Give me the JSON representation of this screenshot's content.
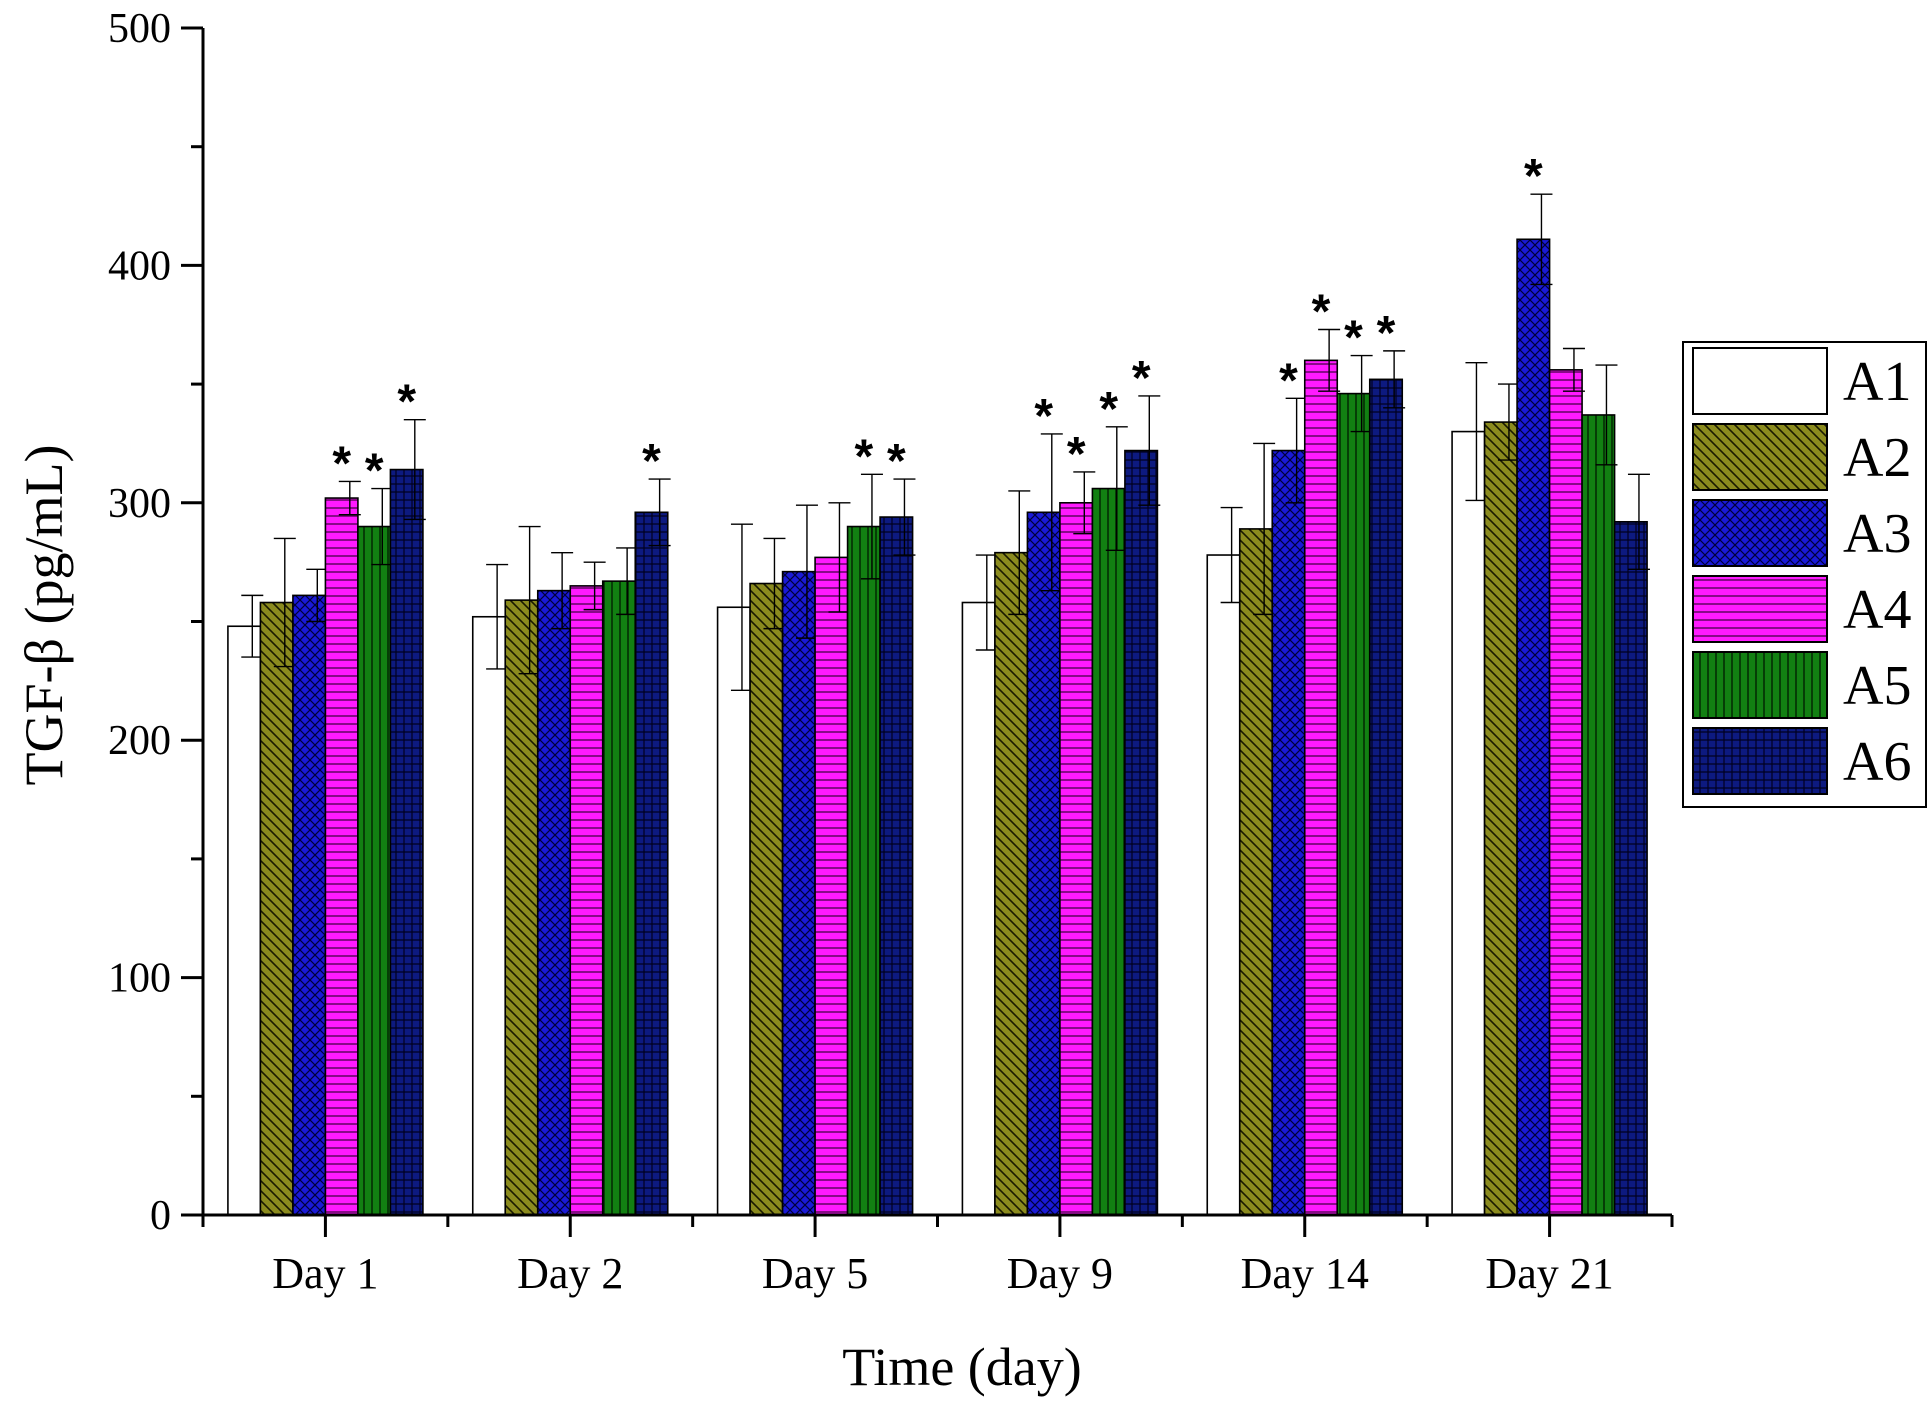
{
  "chart_data": {
    "type": "bar",
    "title": "",
    "xlabel": "Time (day)",
    "ylabel": "TGF-β (pg/mL)",
    "ylim": [
      0,
      500
    ],
    "yticks": [
      "0",
      "100",
      "200",
      "300",
      "400",
      "500"
    ],
    "categories": [
      "Day 1",
      "Day 2",
      "Day 5",
      "Day 9",
      "Day 14",
      "Day 21"
    ],
    "legend_position": "right",
    "significance_marker": "*",
    "series": [
      {
        "name": "A1",
        "color": "#ffffff",
        "pattern": "none",
        "values": [
          248,
          252,
          256,
          258,
          278,
          330
        ],
        "errors": [
          13,
          22,
          35,
          20,
          20,
          29
        ],
        "significant": [
          false,
          false,
          false,
          false,
          false,
          false
        ]
      },
      {
        "name": "A2",
        "color": "#8b8b1e",
        "pattern": "diagonal",
        "values": [
          258,
          259,
          266,
          279,
          289,
          334
        ],
        "errors": [
          27,
          31,
          19,
          26,
          36,
          16
        ],
        "significant": [
          false,
          false,
          false,
          false,
          false,
          false
        ]
      },
      {
        "name": "A3",
        "color": "#1a1ad6",
        "pattern": "crosshatch",
        "values": [
          261,
          263,
          271,
          296,
          322,
          411
        ],
        "errors": [
          11,
          16,
          28,
          33,
          22,
          19
        ],
        "significant": [
          false,
          false,
          false,
          true,
          true,
          true
        ]
      },
      {
        "name": "A4",
        "color": "#ff1aff",
        "pattern": "horizontal",
        "values": [
          302,
          265,
          277,
          300,
          360,
          356
        ],
        "errors": [
          7,
          10,
          23,
          13,
          13,
          9
        ],
        "significant": [
          true,
          false,
          false,
          true,
          true,
          false
        ]
      },
      {
        "name": "A5",
        "color": "#128012",
        "pattern": "vertical",
        "values": [
          290,
          267,
          290,
          306,
          346,
          337
        ],
        "errors": [
          16,
          14,
          22,
          26,
          16,
          21
        ],
        "significant": [
          true,
          false,
          true,
          true,
          true,
          false
        ]
      },
      {
        "name": "A6",
        "color": "#0d1a80",
        "pattern": "grid",
        "values": [
          314,
          296,
          294,
          322,
          352,
          292
        ],
        "errors": [
          21,
          14,
          16,
          23,
          12,
          20
        ],
        "significant": [
          true,
          true,
          true,
          true,
          true,
          false
        ]
      }
    ]
  }
}
